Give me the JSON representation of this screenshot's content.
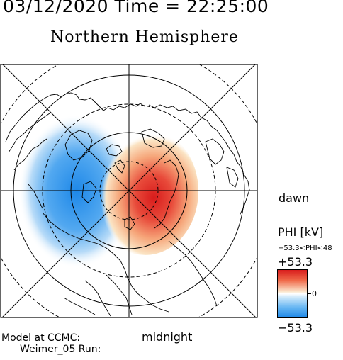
{
  "header": {
    "datetime": "03/12/2020 Time = 22:25:00",
    "hemisphere": "Northern Hemisphere"
  },
  "map": {
    "potential_pattern": {
      "dusk_cell": {
        "polarity": "negative",
        "color": "#1e88e8"
      },
      "dawn_cell": {
        "polarity": "positive",
        "color": "#d81c1c"
      }
    },
    "grid": "polar stereographic, latitude circles and meridians"
  },
  "labels": {
    "dawn": "dawn",
    "midnight": "midnight",
    "model_line1": "Model at CCMC:",
    "model_line2": "Weimer_05 Run:"
  },
  "colorbar": {
    "title": "PHI [kV]",
    "range_text": "−53.3<PHI<48",
    "max_label": "+53.3",
    "zero_label": "0",
    "min_label": "−53.3",
    "colors": [
      "#d81c1c",
      "#f06a4a",
      "#ffffff",
      "#6ab8f3",
      "#1e88e8"
    ]
  }
}
